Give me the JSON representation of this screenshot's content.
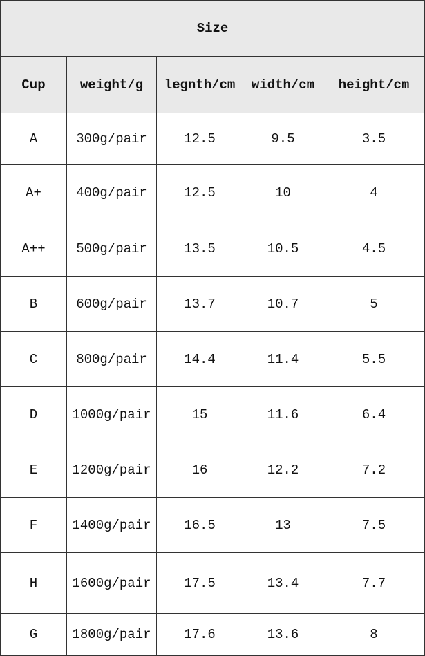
{
  "table": {
    "title": "Size",
    "header": [
      "Cup",
      "weight/g",
      "legnth/cm",
      "width/cm",
      "height/cm"
    ],
    "rows": [
      [
        "A",
        "300g/pair",
        "12.5",
        "9.5",
        "3.5"
      ],
      [
        "A+",
        "400g/pair",
        "12.5",
        "10",
        "4"
      ],
      [
        "A++",
        "500g/pair",
        "13.5",
        "10.5",
        "4.5"
      ],
      [
        "B",
        "600g/pair",
        "13.7",
        "10.7",
        "5"
      ],
      [
        "C",
        "800g/pair",
        "14.4",
        "11.4",
        "5.5"
      ],
      [
        "D",
        "1000g/pair",
        "15",
        "11.6",
        "6.4"
      ],
      [
        "E",
        "1200g/pair",
        "16",
        "12.2",
        "7.2"
      ],
      [
        "F",
        "1400g/pair",
        "16.5",
        "13",
        "7.5"
      ],
      [
        "H",
        "1600g/pair",
        "17.5",
        "13.4",
        "7.7"
      ],
      [
        "G",
        "1800g/pair",
        "17.6",
        "13.6",
        "8"
      ]
    ]
  }
}
